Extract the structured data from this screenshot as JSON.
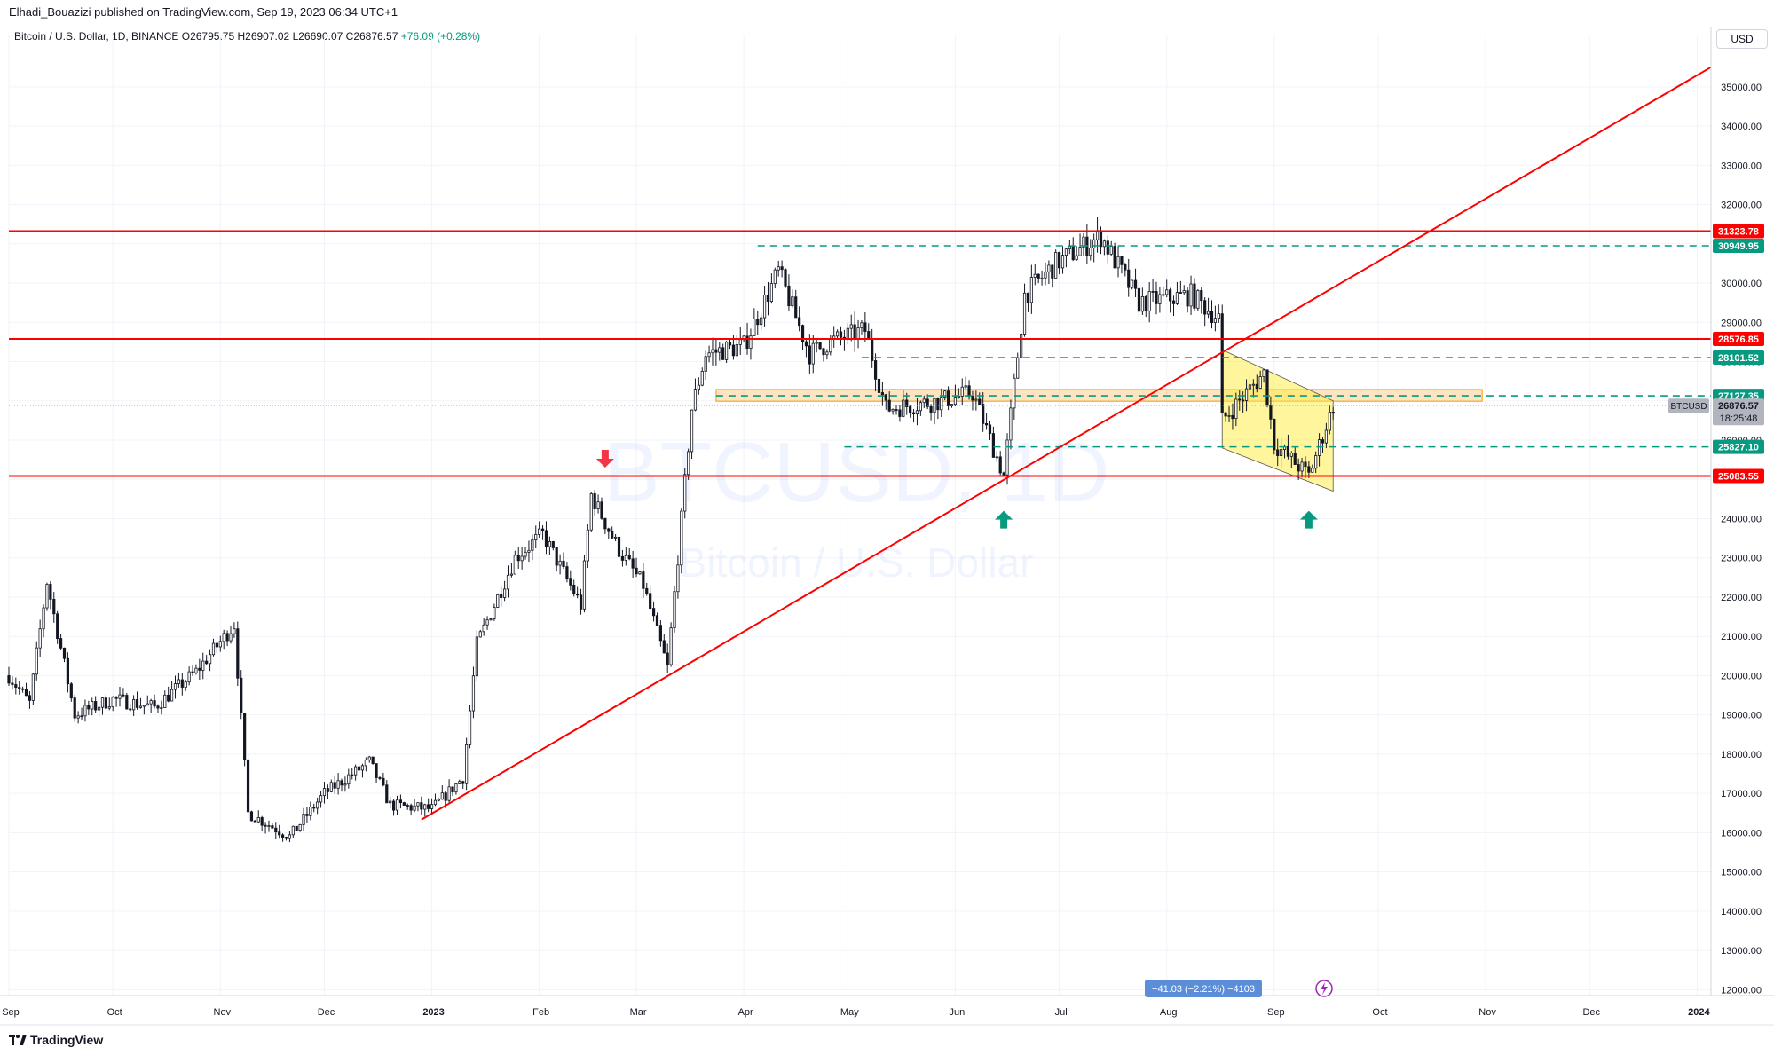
{
  "header": {
    "published": "Elhadi_Bouazizi published on TradingView.com, Sep 19, 2023 06:34 UTC+1",
    "symbol_desc": "Bitcoin / U.S. Dollar, 1D, BINANCE",
    "open_label": "O",
    "open": "26795.75",
    "high_label": "H",
    "high": "26907.02",
    "low_label": "L",
    "low": "26690.07",
    "close_label": "C",
    "close": "26876.57",
    "change": "+76.09 (+0.28%)"
  },
  "currency_button": "USD",
  "watermark": {
    "symbol": "BTCUSD, 1D",
    "name": "Bitcoin / U.S. Dollar"
  },
  "footer": {
    "brand": "TradingView"
  },
  "measure_label": "−41.03 (−2.21%) −4103",
  "price_tag": {
    "symbol": "BTCUSD",
    "price": "26876.57",
    "countdown": "18:25:48"
  },
  "colors": {
    "up": "#089981",
    "down": "#f23645",
    "line": "#ff0000",
    "candle": "#131722",
    "grid": "#f0f3fa"
  },
  "chart_data": {
    "type": "candlestick",
    "x_axis": {
      "tick_labels": [
        "Sep",
        "Oct",
        "Nov",
        "Dec",
        "2023",
        "Feb",
        "Mar",
        "Apr",
        "May",
        "Jun",
        "Jul",
        "Aug",
        "Sep",
        "Oct",
        "Nov",
        "Dec",
        "2024"
      ],
      "range": [
        "2022-09-01",
        "2024-01-05"
      ]
    },
    "y_axis": {
      "tick_labels": [
        "12000.00",
        "13000.00",
        "14000.00",
        "15000.00",
        "16000.00",
        "17000.00",
        "18000.00",
        "19000.00",
        "20000.00",
        "21000.00",
        "22000.00",
        "23000.00",
        "24000.00",
        "25000.00",
        "26000.00",
        "27000.00",
        "28000.00",
        "29000.00",
        "30000.00",
        "31000.00",
        "32000.00",
        "33000.00",
        "34000.00",
        "35000.00"
      ],
      "range": [
        11850,
        35900
      ],
      "side": "right"
    },
    "grid": true,
    "price_anchors": [
      {
        "date": "2022-09-01",
        "price": 20000
      },
      {
        "date": "2022-09-07",
        "price": 19300
      },
      {
        "date": "2022-09-12",
        "price": 22400
      },
      {
        "date": "2022-09-20",
        "price": 19000
      },
      {
        "date": "2022-10-01",
        "price": 19400
      },
      {
        "date": "2022-10-13",
        "price": 19200
      },
      {
        "date": "2022-10-25",
        "price": 20100
      },
      {
        "date": "2022-11-05",
        "price": 21300
      },
      {
        "date": "2022-11-09",
        "price": 16500
      },
      {
        "date": "2022-11-21",
        "price": 15900
      },
      {
        "date": "2022-12-01",
        "price": 17000
      },
      {
        "date": "2022-12-14",
        "price": 17800
      },
      {
        "date": "2022-12-20",
        "price": 16700
      },
      {
        "date": "2023-01-01",
        "price": 16600
      },
      {
        "date": "2023-01-10",
        "price": 17400
      },
      {
        "date": "2023-01-14",
        "price": 20800
      },
      {
        "date": "2023-01-25",
        "price": 23000
      },
      {
        "date": "2023-02-02",
        "price": 23600
      },
      {
        "date": "2023-02-13",
        "price": 21800
      },
      {
        "date": "2023-02-16",
        "price": 24600
      },
      {
        "date": "2023-02-24",
        "price": 23200
      },
      {
        "date": "2023-03-03",
        "price": 22300
      },
      {
        "date": "2023-03-10",
        "price": 20200
      },
      {
        "date": "2023-03-17",
        "price": 26800
      },
      {
        "date": "2023-03-21",
        "price": 28200
      },
      {
        "date": "2023-04-01",
        "price": 28400
      },
      {
        "date": "2023-04-11",
        "price": 30300
      },
      {
        "date": "2023-04-20",
        "price": 28200
      },
      {
        "date": "2023-04-26",
        "price": 28500
      },
      {
        "date": "2023-05-06",
        "price": 28800
      },
      {
        "date": "2023-05-12",
        "price": 26800
      },
      {
        "date": "2023-05-28",
        "price": 27000
      },
      {
        "date": "2023-06-06",
        "price": 27200
      },
      {
        "date": "2023-06-15",
        "price": 25100
      },
      {
        "date": "2023-06-21",
        "price": 29700
      },
      {
        "date": "2023-06-30",
        "price": 30500
      },
      {
        "date": "2023-07-13",
        "price": 31200
      },
      {
        "date": "2023-07-24",
        "price": 29500
      },
      {
        "date": "2023-08-08",
        "price": 29700
      },
      {
        "date": "2023-08-16",
        "price": 29100
      },
      {
        "date": "2023-08-17",
        "price": 26500
      },
      {
        "date": "2023-08-29",
        "price": 27700
      },
      {
        "date": "2023-09-01",
        "price": 25900
      },
      {
        "date": "2023-09-11",
        "price": 25100
      },
      {
        "date": "2023-09-18",
        "price": 26877
      }
    ],
    "horizontal_levels": [
      {
        "price": 31323.78,
        "style": "solid",
        "color": "#ff0000",
        "label": "31323.78"
      },
      {
        "price": 30949.95,
        "style": "dashed",
        "color": "#089981",
        "label": "30949.95",
        "from": "2023-04-05"
      },
      {
        "price": 28576.85,
        "style": "solid",
        "color": "#ff0000",
        "label": "28576.85"
      },
      {
        "price": 28101.52,
        "style": "dashed",
        "color": "#089981",
        "label": "28101.52",
        "from": "2023-05-05"
      },
      {
        "price": 27127.35,
        "style": "dashed",
        "color": "#089981",
        "label": "27127.35",
        "from": "2023-03-24"
      },
      {
        "price": 25827.1,
        "style": "dashed",
        "color": "#089981",
        "label": "25827.10",
        "from": "2023-04-30"
      },
      {
        "price": 25083.55,
        "style": "solid",
        "color": "#ff0000",
        "label": "25083.55"
      }
    ],
    "zone": {
      "from": "2023-03-24",
      "to": "2023-10-31",
      "low": 26990,
      "high": 27290
    },
    "trendline": {
      "x1": "2022-12-29",
      "y1": 16330,
      "x2": "2024-01-05",
      "y2": 35500
    },
    "channel": {
      "top_start": [
        "2023-08-17",
        28300
      ],
      "top_end": [
        "2023-09-18",
        27000
      ],
      "bottom_start": [
        "2023-08-17",
        25800
      ],
      "bottom_end": [
        "2023-09-18",
        24700
      ]
    },
    "arrows": [
      {
        "date": "2023-02-20",
        "price": 25300,
        "dir": "down"
      },
      {
        "date": "2023-06-15",
        "price": 24200,
        "dir": "up"
      },
      {
        "date": "2023-09-11",
        "price": 24200,
        "dir": "up"
      }
    ]
  }
}
